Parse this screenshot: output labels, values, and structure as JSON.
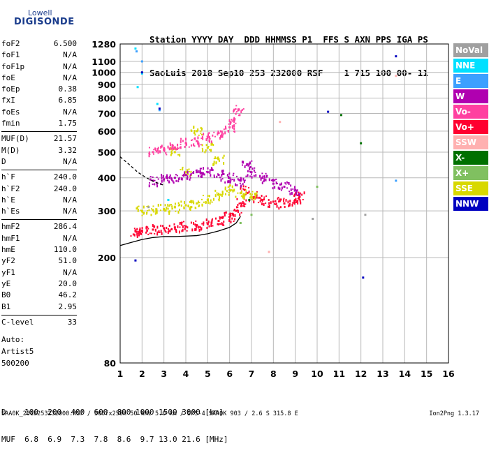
{
  "logo": {
    "line1": "Lowell",
    "line2": "DIGISONDE"
  },
  "header": {
    "line1": "Station YYYY DAY  DDD HHMMSS P1  FFS S AXN PPS IGA PS",
    "line2": "SaoLuis 2018 Sep10 253 232000 RSF    1 715 100 00- 11"
  },
  "params": [
    {
      "group": [
        {
          "name": "foF2",
          "value": "6.500"
        },
        {
          "name": "foF1",
          "value": "N/A"
        },
        {
          "name": "foF1p",
          "value": "N/A"
        },
        {
          "name": "foE",
          "value": "N/A"
        },
        {
          "name": "foEp",
          "value": "0.38"
        },
        {
          "name": "fxI",
          "value": "6.85"
        },
        {
          "name": "foEs",
          "value": "N/A"
        },
        {
          "name": "fmin",
          "value": "1.75"
        }
      ]
    },
    {
      "group": [
        {
          "name": "MUF(D)",
          "value": "21.57"
        },
        {
          "name": "M(D)",
          "value": "3.32"
        },
        {
          "name": "D",
          "value": "N/A"
        }
      ]
    },
    {
      "group": [
        {
          "name": "h`F",
          "value": "240.0"
        },
        {
          "name": "h`F2",
          "value": "240.0"
        },
        {
          "name": "h`E",
          "value": "N/A"
        },
        {
          "name": "h`Es",
          "value": "N/A"
        }
      ]
    },
    {
      "group": [
        {
          "name": "hmF2",
          "value": "286.4"
        },
        {
          "name": "hmF1",
          "value": "N/A"
        },
        {
          "name": "hmE",
          "value": "110.0"
        },
        {
          "name": "yF2",
          "value": "51.0"
        },
        {
          "name": "yF1",
          "value": "N/A"
        },
        {
          "name": "yE",
          "value": "20.0"
        },
        {
          "name": "B0",
          "value": "46.2"
        },
        {
          "name": "B1",
          "value": "2.95"
        }
      ]
    },
    {
      "group": [
        {
          "name": "C-level",
          "value": "33"
        }
      ]
    }
  ],
  "auto": {
    "line1": "Auto:",
    "line2": "Artist5",
    "line3": "500200"
  },
  "legend": [
    {
      "label": "NoVal",
      "color": "#a0a0a0"
    },
    {
      "label": "NNE",
      "color": "#00e0ff"
    },
    {
      "label": "E",
      "color": "#3ca0ff"
    },
    {
      "label": "W",
      "color": "#b000b0"
    },
    {
      "label": "Vo-",
      "color": "#ff40a0"
    },
    {
      "label": "Vo+",
      "color": "#ff0030"
    },
    {
      "label": "SSW",
      "color": "#ffb0b0"
    },
    {
      "label": "X-",
      "color": "#007000"
    },
    {
      "label": "X+",
      "color": "#80c060"
    },
    {
      "label": "SSE",
      "color": "#d8d800"
    },
    {
      "label": "NNW",
      "color": "#0000c0"
    }
  ],
  "dmuf": {
    "line1": "D    100  200  400  600  800 1000 1500 3000 [km]",
    "line2": "MUF  6.8  6.9  7.3  7.8  8.6  9.7 13.0 21.6 [MHz]"
  },
  "footer": {
    "left": "SAA0K_2018253232000.RSF / 300fx256h 50 kHz 5.0 km / DPS-4 SAA0K 903 / 2.6 S 315.8 E",
    "right": "Ion2Png 1.3.17"
  },
  "chart_data": {
    "type": "scatter",
    "title": "",
    "xlabel": "",
    "ylabel": "",
    "xlim": [
      1,
      16
    ],
    "ylim": [
      80,
      1280
    ],
    "y_scale": "log",
    "x_ticks": [
      1,
      2,
      3,
      4,
      5,
      6,
      7,
      8,
      9,
      10,
      11,
      12,
      13,
      14,
      15,
      16
    ],
    "y_ticks": [
      80,
      200,
      300,
      400,
      500,
      600,
      700,
      800,
      900,
      1000,
      1100,
      1280
    ],
    "grid": true,
    "legend_position": "right",
    "curves": [
      {
        "name": "profile",
        "color": "#000000",
        "x": [
          1,
          1.5,
          2,
          2.5,
          3,
          3.5,
          4,
          4.5,
          5,
          5.5,
          6,
          6.3,
          6.5
        ],
        "y": [
          222,
          228,
          234,
          238,
          240,
          240,
          241,
          242,
          246,
          252,
          260,
          270,
          286
        ]
      },
      {
        "name": "extrapolated",
        "color": "#000000",
        "dashed": true,
        "x": [
          1,
          1.4,
          1.8,
          2.2,
          2.6,
          3.0
        ],
        "y": [
          480,
          450,
          420,
          400,
          385,
          375
        ]
      }
    ],
    "series": [
      {
        "name": "Vo+",
        "color": "#ff0030",
        "x": [
          1.75,
          2,
          2.5,
          3,
          3.5,
          4,
          4.5,
          5,
          5.5,
          6,
          6.3,
          6.5,
          6.7,
          7,
          7.5,
          8,
          8.5,
          9,
          9.2
        ],
        "y": [
          250,
          252,
          255,
          258,
          260,
          262,
          265,
          268,
          275,
          285,
          300,
          320,
          360,
          340,
          330,
          325,
          320,
          330,
          340
        ]
      },
      {
        "name": "SSE",
        "color": "#d8d800",
        "x": [
          2,
          2.5,
          3,
          3.5,
          4,
          4.5,
          5,
          5.5,
          6,
          6.5,
          7,
          4.5,
          5,
          5.5,
          4,
          3.5
        ],
        "y": [
          300,
          302,
          305,
          310,
          315,
          320,
          330,
          345,
          360,
          350,
          340,
          600,
          520,
          470,
          420,
          500
        ]
      },
      {
        "name": "W",
        "color": "#b000b0",
        "x": [
          2.5,
          3,
          3.5,
          4,
          4.5,
          5,
          5.5,
          6,
          6.5,
          6.8,
          7,
          7.5,
          8,
          8.5,
          9
        ],
        "y": [
          390,
          395,
          400,
          410,
          420,
          420,
          410,
          400,
          390,
          450,
          420,
          400,
          380,
          370,
          360
        ]
      },
      {
        "name": "Vo-",
        "color": "#ff40a0",
        "x": [
          2.5,
          3,
          3.5,
          4,
          4.5,
          5,
          5.5,
          6,
          6.2,
          6.4
        ],
        "y": [
          500,
          510,
          520,
          540,
          550,
          570,
          590,
          620,
          660,
          720
        ]
      },
      {
        "name": "NNE",
        "color": "#00e0ff",
        "x": [
          1.7,
          1.8,
          2,
          2.7,
          3.2
        ],
        "y": [
          1230,
          880,
          990,
          760,
          330
        ]
      },
      {
        "name": "E",
        "color": "#3ca0ff",
        "x": [
          1.75,
          2,
          2.8,
          13.6
        ],
        "y": [
          1200,
          1100,
          720,
          390
        ]
      },
      {
        "name": "NNW",
        "color": "#0000c0",
        "x": [
          1.7,
          2,
          2.8,
          10.5,
          12.1,
          13.6
        ],
        "y": [
          195,
          1000,
          730,
          710,
          168,
          1150
        ]
      },
      {
        "name": "X-",
        "color": "#007000",
        "x": [
          6.9,
          12.0,
          11.1
        ],
        "y": [
          330,
          540,
          690
        ]
      },
      {
        "name": "X+",
        "color": "#80c060",
        "x": [
          6.5,
          7.0,
          10.0
        ],
        "y": [
          270,
          290,
          370
        ]
      },
      {
        "name": "SSW",
        "color": "#ffb0b0",
        "x": [
          7.8,
          8.3,
          13.6
        ],
        "y": [
          210,
          650,
          970
        ]
      },
      {
        "name": "NoVal",
        "color": "#a0a0a0",
        "x": [
          2.3,
          9.8,
          12.2
        ],
        "y": [
          310,
          280,
          290
        ]
      }
    ]
  }
}
